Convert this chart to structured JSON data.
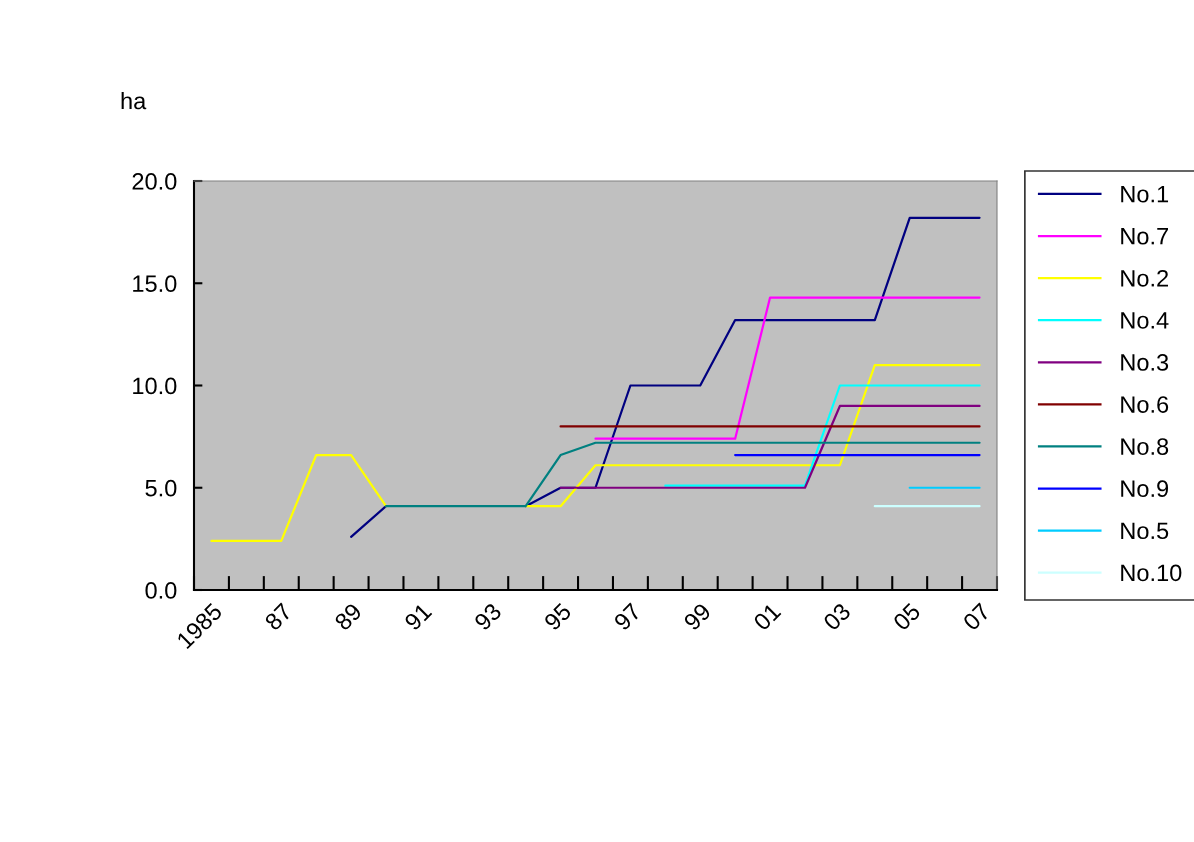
{
  "chart_data": {
    "type": "line",
    "ylabel": "ha",
    "categories": [
      "1985",
      null,
      "87",
      null,
      "89",
      null,
      "91",
      null,
      "93",
      null,
      "95",
      null,
      "97",
      null,
      "99",
      null,
      "01",
      null,
      "03",
      null,
      "05",
      null,
      "07"
    ],
    "series": [
      {
        "name": "No.1",
        "color": "#000080",
        "values": [
          null,
          null,
          null,
          null,
          2.6,
          4.1,
          null,
          null,
          null,
          4.1,
          5.0,
          5.0,
          10.0,
          10.0,
          10.0,
          13.2,
          13.2,
          13.2,
          13.2,
          13.2,
          18.2,
          18.2,
          18.2
        ]
      },
      {
        "name": "No.7",
        "color": "#ff00ff",
        "values": [
          null,
          null,
          null,
          null,
          null,
          null,
          null,
          null,
          null,
          null,
          null,
          7.4,
          7.4,
          7.4,
          7.4,
          7.4,
          14.3,
          14.3,
          14.3,
          14.3,
          14.3,
          14.3,
          14.3
        ]
      },
      {
        "name": "No.2",
        "color": "#ffff00",
        "values": [
          2.4,
          2.4,
          2.4,
          6.6,
          6.6,
          4.1,
          null,
          null,
          null,
          4.1,
          4.1,
          6.1,
          6.1,
          6.1,
          6.1,
          6.1,
          6.1,
          6.1,
          6.1,
          11.0,
          11.0,
          11.0,
          11.0
        ]
      },
      {
        "name": "No.4",
        "color": "#00ffff",
        "values": [
          null,
          null,
          null,
          null,
          null,
          null,
          null,
          null,
          null,
          null,
          null,
          null,
          null,
          5.1,
          5.1,
          5.1,
          5.1,
          5.1,
          10.0,
          10.0,
          10.0,
          10.0,
          10.0
        ]
      },
      {
        "name": "No.3",
        "color": "#800080",
        "values": [
          null,
          null,
          null,
          null,
          null,
          null,
          null,
          null,
          null,
          null,
          5.0,
          5.0,
          5.0,
          5.0,
          5.0,
          5.0,
          5.0,
          5.0,
          9.0,
          9.0,
          9.0,
          9.0,
          9.0
        ]
      },
      {
        "name": "No.6",
        "color": "#800000",
        "values": [
          null,
          null,
          null,
          null,
          null,
          null,
          null,
          null,
          null,
          null,
          8.0,
          8.0,
          8.0,
          8.0,
          8.0,
          8.0,
          8.0,
          8.0,
          8.0,
          8.0,
          8.0,
          8.0,
          8.0
        ]
      },
      {
        "name": "No.8",
        "color": "#008080",
        "values": [
          null,
          null,
          null,
          null,
          null,
          4.1,
          4.1,
          4.1,
          4.1,
          4.1,
          6.6,
          7.2,
          7.2,
          7.2,
          7.2,
          7.2,
          7.2,
          7.2,
          7.2,
          7.2,
          7.2,
          7.2,
          7.2
        ]
      },
      {
        "name": "No.9",
        "color": "#0000ff",
        "values": [
          null,
          null,
          null,
          null,
          null,
          null,
          null,
          null,
          null,
          null,
          null,
          null,
          null,
          null,
          null,
          6.6,
          6.6,
          6.6,
          6.6,
          6.6,
          6.6,
          6.6,
          6.6
        ]
      },
      {
        "name": "No.5",
        "color": "#00ccff",
        "values": [
          null,
          null,
          null,
          null,
          null,
          null,
          null,
          null,
          null,
          null,
          null,
          null,
          null,
          null,
          null,
          null,
          null,
          null,
          null,
          null,
          5.0,
          5.0,
          5.0
        ]
      },
      {
        "name": "No.10",
        "color": "#ccffff",
        "values": [
          null,
          null,
          null,
          null,
          null,
          null,
          null,
          null,
          null,
          null,
          null,
          null,
          null,
          null,
          null,
          null,
          null,
          null,
          null,
          4.1,
          4.1,
          4.1,
          4.1
        ]
      }
    ],
    "ylim": [
      0,
      20
    ],
    "yticks": [
      {
        "value": 0,
        "label": "0.0"
      },
      {
        "value": 5,
        "label": "5.0"
      },
      {
        "value": 10,
        "label": "10.0"
      },
      {
        "value": 15,
        "label": "15.0"
      },
      {
        "value": 20,
        "label": "20.0"
      }
    ],
    "grid": false,
    "legend": "right",
    "marker": "none",
    "line_style": "solid"
  }
}
